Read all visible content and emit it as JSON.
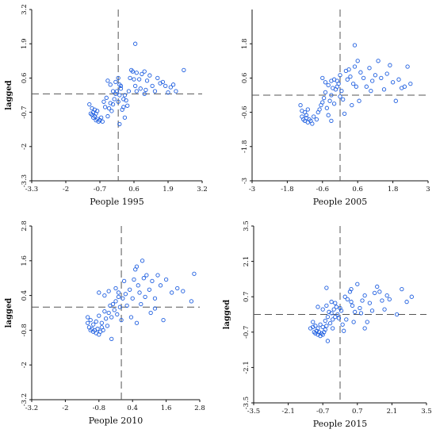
{
  "chart_data": [
    {
      "type": "scatter",
      "xlabel": "People 1995",
      "ylabel": "lagged",
      "xticks": [
        "-3.3",
        "-2",
        "-0.7",
        "0.6",
        "1.9",
        "3.2"
      ],
      "yticks": [
        "3.2",
        "1.9",
        "0.6",
        "-0.7",
        "-2",
        "-3.3"
      ],
      "xlim": [
        -3.3,
        3.2
      ],
      "ylim": [
        -3.3,
        3.2
      ],
      "grid": false,
      "points": [
        [
          -1.05,
          -0.75
        ],
        [
          -1.0,
          -0.8
        ],
        [
          -0.95,
          -0.9
        ],
        [
          -0.9,
          -0.85
        ],
        [
          -0.85,
          -1.0
        ],
        [
          -0.8,
          -0.95
        ],
        [
          -0.75,
          -1.05
        ],
        [
          -0.7,
          -1.0
        ],
        [
          -0.65,
          -0.9
        ],
        [
          -0.6,
          -1.05
        ],
        [
          -0.95,
          -0.7
        ],
        [
          -0.9,
          -0.6
        ],
        [
          -1.1,
          -0.4
        ],
        [
          -1.0,
          -0.55
        ],
        [
          -0.85,
          -0.75
        ],
        [
          -0.8,
          -0.65
        ],
        [
          -0.55,
          -0.3
        ],
        [
          -0.5,
          -0.5
        ],
        [
          -0.45,
          -0.15
        ],
        [
          -0.4,
          -0.85
        ],
        [
          -0.35,
          -0.55
        ],
        [
          -0.3,
          -0.35
        ],
        [
          -0.25,
          -0.65
        ],
        [
          -0.2,
          -0.4
        ],
        [
          -0.15,
          -0.2
        ],
        [
          -0.1,
          0.0
        ],
        [
          -0.05,
          0.1
        ],
        [
          0.0,
          -0.3
        ],
        [
          0.05,
          -0.05
        ],
        [
          0.1,
          0.2
        ],
        [
          0.15,
          -0.6
        ],
        [
          0.2,
          -0.5
        ],
        [
          -0.4,
          0.5
        ],
        [
          -0.3,
          0.35
        ],
        [
          -0.2,
          0.1
        ],
        [
          -0.1,
          0.45
        ],
        [
          0.0,
          0.6
        ],
        [
          0.05,
          0.35
        ],
        [
          0.1,
          0.3
        ],
        [
          0.2,
          -0.2
        ],
        [
          0.25,
          -0.05
        ],
        [
          0.3,
          -0.25
        ],
        [
          0.35,
          -0.45
        ],
        [
          0.4,
          0.1
        ],
        [
          0.45,
          0.6
        ],
        [
          0.5,
          0.9
        ],
        [
          0.55,
          0.85
        ],
        [
          0.6,
          0.55
        ],
        [
          0.65,
          0.3
        ],
        [
          0.7,
          0.1
        ],
        [
          0.8,
          0.55
        ],
        [
          0.85,
          0.2
        ],
        [
          0.9,
          0.75
        ],
        [
          1.0,
          0.0
        ],
        [
          1.05,
          0.15
        ],
        [
          1.1,
          0.5
        ],
        [
          1.2,
          0.7
        ],
        [
          1.3,
          0.3
        ],
        [
          1.4,
          0.1
        ],
        [
          1.5,
          0.6
        ],
        [
          1.6,
          0.4
        ],
        [
          1.7,
          0.45
        ],
        [
          1.8,
          0.3
        ],
        [
          1.9,
          0.05
        ],
        [
          2.0,
          0.25
        ],
        [
          2.1,
          0.35
        ],
        [
          2.2,
          0.1
        ],
        [
          2.5,
          0.9
        ],
        [
          0.65,
          1.9
        ],
        [
          0.7,
          0.8
        ],
        [
          0.05,
          -1.15
        ],
        [
          0.25,
          -0.9
        ],
        [
          1.0,
          0.85
        ]
      ]
    },
    {
      "type": "scatter",
      "xlabel": "People 2005",
      "ylabel": "",
      "xticks": [
        "-3",
        "-1.8",
        "-0.6",
        "0.6",
        "1.8",
        "3"
      ],
      "yticks": [
        "1.8",
        "0.6",
        "-0.6",
        "-1.8",
        "-3"
      ],
      "xlim": [
        -3,
        3
      ],
      "ylim": [
        -3,
        3
      ],
      "grid": false,
      "points": [
        [
          -1.3,
          -0.75
        ],
        [
          -1.25,
          -0.85
        ],
        [
          -1.2,
          -0.9
        ],
        [
          -1.15,
          -0.8
        ],
        [
          -1.1,
          -0.95
        ],
        [
          -1.05,
          -0.85
        ],
        [
          -1.0,
          -0.9
        ],
        [
          -0.95,
          -1.0
        ],
        [
          -1.3,
          -0.55
        ],
        [
          -1.2,
          -0.6
        ],
        [
          -1.1,
          -0.5
        ],
        [
          -1.35,
          -0.35
        ],
        [
          -1.15,
          -0.7
        ],
        [
          -0.9,
          -0.75
        ],
        [
          -0.8,
          -0.85
        ],
        [
          -0.75,
          -0.6
        ],
        [
          -0.7,
          -0.5
        ],
        [
          -0.65,
          -0.35
        ],
        [
          -0.6,
          -0.25
        ],
        [
          -0.55,
          -0.1
        ],
        [
          -0.5,
          0.1
        ],
        [
          -0.45,
          -0.45
        ],
        [
          -0.4,
          -0.7
        ],
        [
          -0.35,
          -0.2
        ],
        [
          -0.3,
          0.0
        ],
        [
          -0.25,
          0.25
        ],
        [
          -0.2,
          -0.3
        ],
        [
          -0.15,
          0.2
        ],
        [
          -0.1,
          0.5
        ],
        [
          -0.05,
          0.4
        ],
        [
          0.0,
          -0.05
        ],
        [
          0.05,
          0.15
        ],
        [
          -0.6,
          0.6
        ],
        [
          -0.5,
          0.45
        ],
        [
          -0.4,
          0.35
        ],
        [
          -0.3,
          0.5
        ],
        [
          -0.2,
          0.55
        ],
        [
          -0.1,
          0.3
        ],
        [
          0.0,
          0.7
        ],
        [
          0.1,
          -0.15
        ],
        [
          0.2,
          0.85
        ],
        [
          0.25,
          0.55
        ],
        [
          0.3,
          0.9
        ],
        [
          0.35,
          0.65
        ],
        [
          0.4,
          -0.35
        ],
        [
          0.45,
          0.4
        ],
        [
          0.5,
          1.0
        ],
        [
          0.55,
          0.3
        ],
        [
          0.6,
          1.2
        ],
        [
          0.65,
          -0.2
        ],
        [
          0.7,
          0.8
        ],
        [
          0.8,
          0.6
        ],
        [
          0.9,
          0.3
        ],
        [
          1.0,
          0.95
        ],
        [
          1.05,
          0.15
        ],
        [
          1.1,
          0.5
        ],
        [
          1.2,
          0.7
        ],
        [
          1.3,
          1.2
        ],
        [
          1.4,
          0.6
        ],
        [
          1.5,
          0.2
        ],
        [
          1.6,
          0.75
        ],
        [
          1.7,
          1.05
        ],
        [
          1.8,
          0.45
        ],
        [
          1.9,
          -0.2
        ],
        [
          2.0,
          0.55
        ],
        [
          2.1,
          0.25
        ],
        [
          2.2,
          0.3
        ],
        [
          2.3,
          1.0
        ],
        [
          2.4,
          0.4
        ],
        [
          0.5,
          1.75
        ],
        [
          0.15,
          -0.65
        ],
        [
          -0.3,
          -0.9
        ]
      ]
    },
    {
      "type": "scatter",
      "xlabel": "People 2010",
      "ylabel": "lagged",
      "xticks": [
        "-3.2",
        "-2",
        "-0.8",
        "0.4",
        "1.6",
        "2.8"
      ],
      "yticks": [
        "2.8",
        "1.6",
        "0.4",
        "-0.8",
        "-2",
        "-3.2"
      ],
      "xlim": [
        -3.2,
        2.8
      ],
      "ylim": [
        -3.2,
        2.8
      ],
      "grid": false,
      "points": [
        [
          -1.2,
          -0.55
        ],
        [
          -1.15,
          -0.7
        ],
        [
          -1.1,
          -0.8
        ],
        [
          -1.05,
          -0.75
        ],
        [
          -1.0,
          -0.85
        ],
        [
          -0.95,
          -0.8
        ],
        [
          -0.9,
          -0.9
        ],
        [
          -0.85,
          -0.75
        ],
        [
          -0.8,
          -0.95
        ],
        [
          -0.75,
          -0.85
        ],
        [
          -0.7,
          -0.7
        ],
        [
          -0.65,
          -0.8
        ],
        [
          -1.2,
          -0.35
        ],
        [
          -1.1,
          -0.45
        ],
        [
          -1.0,
          -0.6
        ],
        [
          -0.9,
          -0.5
        ],
        [
          -0.8,
          -0.3
        ],
        [
          -0.7,
          -0.55
        ],
        [
          -0.6,
          -0.15
        ],
        [
          -0.55,
          -0.4
        ],
        [
          -0.5,
          -0.65
        ],
        [
          -0.45,
          -0.2
        ],
        [
          -0.4,
          0.05
        ],
        [
          -0.35,
          -0.35
        ],
        [
          -0.3,
          0.1
        ],
        [
          -0.25,
          -0.1
        ],
        [
          -0.2,
          0.2
        ],
        [
          -0.15,
          -0.25
        ],
        [
          -0.1,
          0.35
        ],
        [
          -0.05,
          0.0
        ],
        [
          0.0,
          -0.45
        ],
        [
          0.05,
          0.3
        ],
        [
          -0.8,
          0.5
        ],
        [
          -0.6,
          0.4
        ],
        [
          -0.45,
          0.55
        ],
        [
          -0.35,
          -1.1
        ],
        [
          -0.2,
          0.65
        ],
        [
          -0.1,
          0.5
        ],
        [
          0.1,
          0.9
        ],
        [
          0.15,
          0.45
        ],
        [
          0.2,
          0.05
        ],
        [
          0.3,
          0.6
        ],
        [
          0.35,
          -0.35
        ],
        [
          0.4,
          0.3
        ],
        [
          0.45,
          0.95
        ],
        [
          0.5,
          1.3
        ],
        [
          0.55,
          1.4
        ],
        [
          0.6,
          0.75
        ],
        [
          0.65,
          0.5
        ],
        [
          0.7,
          0.1
        ],
        [
          0.8,
          1.0
        ],
        [
          0.85,
          0.35
        ],
        [
          0.9,
          1.1
        ],
        [
          1.0,
          0.6
        ],
        [
          1.05,
          -0.2
        ],
        [
          1.1,
          0.9
        ],
        [
          1.2,
          0.3
        ],
        [
          1.3,
          1.1
        ],
        [
          1.4,
          0.75
        ],
        [
          1.5,
          -0.45
        ],
        [
          1.6,
          0.95
        ],
        [
          1.8,
          0.5
        ],
        [
          2.0,
          0.65
        ],
        [
          2.2,
          0.55
        ],
        [
          2.5,
          0.2
        ],
        [
          2.6,
          1.15
        ],
        [
          0.75,
          1.6
        ],
        [
          1.2,
          -0.05
        ],
        [
          0.55,
          -0.55
        ]
      ]
    },
    {
      "type": "scatter",
      "xlabel": "People 2015",
      "ylabel": "lagged",
      "xticks": [
        "-3.5",
        "-2.1",
        "-0.7",
        "0.7",
        "2.1",
        "3.5"
      ],
      "yticks": [
        "3.5",
        "2.1",
        "0.7",
        "-0.7",
        "-2.1",
        "-3.5"
      ],
      "xlim": [
        -3.5,
        3.5
      ],
      "ylim": [
        -3.5,
        3.5
      ],
      "grid": false,
      "points": [
        [
          -1.1,
          -0.5
        ],
        [
          -1.05,
          -0.7
        ],
        [
          -1.0,
          -0.75
        ],
        [
          -0.95,
          -0.65
        ],
        [
          -0.9,
          -0.8
        ],
        [
          -0.85,
          -0.7
        ],
        [
          -0.8,
          -0.85
        ],
        [
          -0.75,
          -0.75
        ],
        [
          -0.7,
          -0.8
        ],
        [
          -0.65,
          -0.7
        ],
        [
          -0.6,
          -0.6
        ],
        [
          -1.1,
          -0.3
        ],
        [
          -1.0,
          -0.45
        ],
        [
          -0.9,
          -0.55
        ],
        [
          -0.8,
          -0.4
        ],
        [
          -0.7,
          -0.5
        ],
        [
          -0.6,
          -0.25
        ],
        [
          -0.55,
          -0.45
        ],
        [
          -0.5,
          -0.1
        ],
        [
          -0.45,
          0.1
        ],
        [
          -0.4,
          -0.35
        ],
        [
          -0.35,
          0.05
        ],
        [
          -0.3,
          -0.2
        ],
        [
          -0.25,
          0.2
        ],
        [
          -0.2,
          -0.1
        ],
        [
          -0.15,
          0.3
        ],
        [
          -0.1,
          0.0
        ],
        [
          -0.05,
          -0.15
        ],
        [
          0.0,
          0.25
        ],
        [
          0.05,
          0.15
        ],
        [
          0.1,
          -0.4
        ],
        [
          0.15,
          -0.65
        ],
        [
          -0.9,
          0.3
        ],
        [
          -0.7,
          0.2
        ],
        [
          -0.55,
          0.35
        ],
        [
          -0.5,
          -1.05
        ],
        [
          -0.35,
          0.5
        ],
        [
          -0.2,
          0.45
        ],
        [
          0.2,
          0.7
        ],
        [
          0.25,
          -0.2
        ],
        [
          0.4,
          0.9
        ],
        [
          0.45,
          1.0
        ],
        [
          0.5,
          0.35
        ],
        [
          0.55,
          -0.3
        ],
        [
          0.6,
          0.1
        ],
        [
          0.7,
          1.2
        ],
        [
          0.8,
          0.25
        ],
        [
          0.85,
          0.05
        ],
        [
          0.9,
          0.55
        ],
        [
          1.0,
          0.75
        ],
        [
          1.1,
          -0.3
        ],
        [
          1.2,
          0.45
        ],
        [
          1.3,
          0.15
        ],
        [
          1.4,
          0.85
        ],
        [
          1.5,
          1.1
        ],
        [
          1.6,
          0.9
        ],
        [
          1.7,
          0.55
        ],
        [
          1.8,
          0.2
        ],
        [
          1.9,
          0.75
        ],
        [
          2.0,
          0.6
        ],
        [
          2.3,
          0.0
        ],
        [
          2.5,
          1.0
        ],
        [
          2.7,
          0.5
        ],
        [
          2.9,
          0.7
        ],
        [
          -0.55,
          1.05
        ],
        [
          0.3,
          0.6
        ],
        [
          1.0,
          -0.55
        ],
        [
          -1.2,
          -0.55
        ],
        [
          -0.3,
          -0.55
        ],
        [
          0.45,
          0.5
        ]
      ]
    }
  ],
  "style": {
    "marker_color": "#1f5fe0",
    "axis_color": "#111111",
    "ref_line_color": "#555555"
  }
}
